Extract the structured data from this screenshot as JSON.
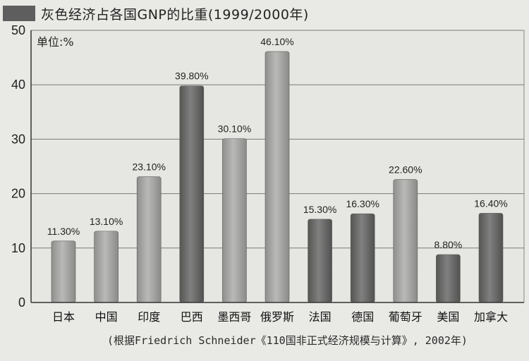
{
  "title": "灰色经济占各国GNP的比重(1999/2000年)",
  "unit_label": "单位:%",
  "source_note": "(根据Friedrich Schneider《110国非正式经济规模与计算》, 2002年)",
  "colors": {
    "background": "#e9e9e6",
    "plot_background": "#e6e6e2",
    "grid": "#7a7a7a",
    "bar_light": "#a7a7a5",
    "bar_dark": "#6e6e6c",
    "title_swatch": "#5e5e5e"
  },
  "chart_data": {
    "type": "bar",
    "title": "灰色经济占各国GNP的比重(1999/2000年)",
    "ylabel": "单位:%",
    "xlabel": "",
    "ylim": [
      0,
      50
    ],
    "yticks": [
      0,
      10,
      20,
      30,
      40,
      50
    ],
    "grid": true,
    "categories": [
      "日本",
      "中国",
      "印度",
      "巴西",
      "墨西哥",
      "俄罗斯",
      "法国",
      "德国",
      "葡萄牙",
      "美国",
      "加拿大"
    ],
    "values": [
      11.3,
      13.1,
      23.1,
      39.8,
      30.1,
      46.1,
      15.3,
      16.3,
      22.6,
      8.8,
      16.4
    ],
    "data_labels": [
      "11.30%",
      "13.10%",
      "23.10%",
      "39.80%",
      "30.10%",
      "46.10%",
      "15.30%",
      "16.30%",
      "22.60%",
      "8.80%",
      "16.40%"
    ],
    "bar_shades": [
      "light",
      "light",
      "light",
      "dark",
      "light",
      "light",
      "dark",
      "dark",
      "light",
      "dark",
      "dark"
    ]
  }
}
